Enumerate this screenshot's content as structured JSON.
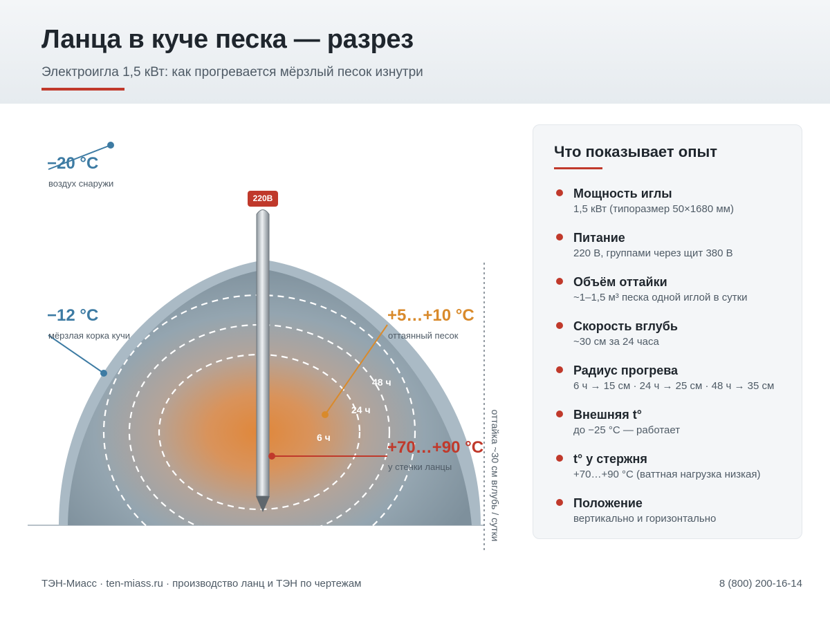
{
  "header": {
    "title": "Ланца в куче песка — разрез",
    "subtitle": "Электроигла 1,5 кВт: как прогревается мёрзлый песок изнутри"
  },
  "diagram": {
    "outside_air": {
      "temp": "−20 °C",
      "label": "воздух снаружи"
    },
    "crust": {
      "temp": "−12 °C",
      "label": "мёрзлая корка кучи"
    },
    "thawed": {
      "temp": "+5…+10 °C",
      "label": "оттаянный песок"
    },
    "lance_wall": {
      "temp": "+70…+90 °C",
      "label": "у стенки ланцы"
    },
    "voltage_badge": "220В",
    "rings": [
      {
        "label": "6 ч"
      },
      {
        "label": "24 ч"
      },
      {
        "label": "48 ч"
      }
    ],
    "thaw_depth": "оттайка ~30 см вглубь / сутки",
    "colors": {
      "pile_outer": "#aabac5",
      "pile_inner": "#7e909c",
      "hot_core": "#e0873a",
      "accent_red": "#c0392b",
      "cold_blue": "#3d7ba3",
      "warm_orange": "#d98a2b"
    }
  },
  "panel": {
    "title": "Что показывает опыт",
    "items": [
      {
        "title": "Мощность иглы",
        "text": "1,5 кВт (типоразмер 50×1680 мм)"
      },
      {
        "title": "Питание",
        "text": "220 В, группами через щит 380 В"
      },
      {
        "title": "Объём оттайки",
        "text": "~1–1,5 м³ песка одной иглой в сутки"
      },
      {
        "title": "Скорость вглубь",
        "text": "~30 см за 24 часа"
      },
      {
        "title": "Радиус прогрева",
        "text": "6 ч → 15 см · 24 ч → 25 см · 48 ч → 35 см"
      },
      {
        "title": "Внешняя t°",
        "text": "до −25 °C — работает"
      },
      {
        "title": "t° у стержня",
        "text": "+70…+90 °C (ваттная нагрузка низкая)"
      },
      {
        "title": "Положение",
        "text": "вертикально и горизонтально"
      }
    ]
  },
  "footer": {
    "left": "ТЭН-Миасс · ten-miass.ru · производство ланц и ТЭН по чертежам",
    "right": "8 (800) 200-16-14"
  }
}
